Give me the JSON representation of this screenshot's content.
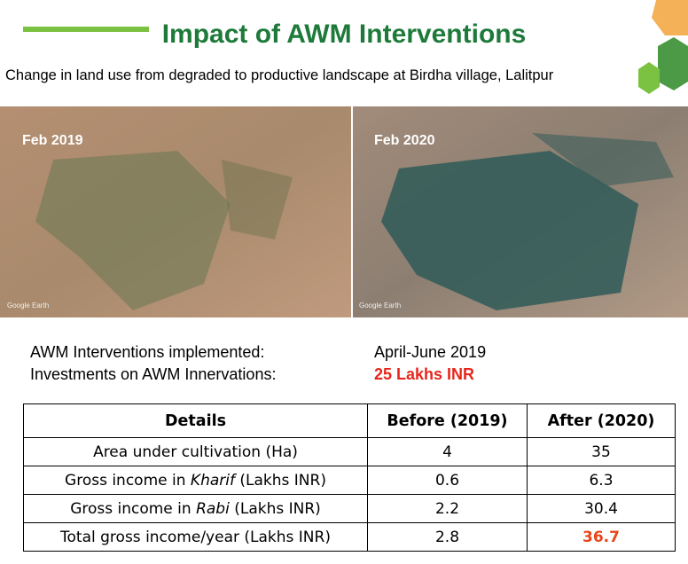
{
  "header": {
    "title": "Impact of AWM Interventions",
    "subtitle": "Change in land use from degraded to productive landscape at Birdha village, Lalitpur"
  },
  "images": [
    {
      "label": "Feb 2019",
      "credit": "Google Earth"
    },
    {
      "label": "Feb 2020",
      "credit": "Google Earth"
    }
  ],
  "info": [
    {
      "label": "AWM Interventions implemented:",
      "value": "April-June 2019"
    },
    {
      "label": "Investments on AWM Innervations:",
      "value": "25 Lakhs INR"
    }
  ],
  "table": {
    "header": [
      "Details",
      "Before (2019)",
      "After (2020)"
    ],
    "rows": [
      {
        "label": [
          "Area under cultivation  (Ha)"
        ],
        "before": 4,
        "after": 35
      },
      {
        "label": [
          "Gross income in ",
          "Kharif",
          " (Lakhs INR)"
        ],
        "before": 0.6,
        "after": 6.3
      },
      {
        "label": [
          "Gross income in ",
          "Rabi",
          " (Lakhs INR)"
        ],
        "before": 2.2,
        "after": 30.4
      },
      {
        "label": [
          "Total gross income/year (Lakhs INR)"
        ],
        "before": 2.8,
        "after": 36.7
      }
    ]
  }
}
